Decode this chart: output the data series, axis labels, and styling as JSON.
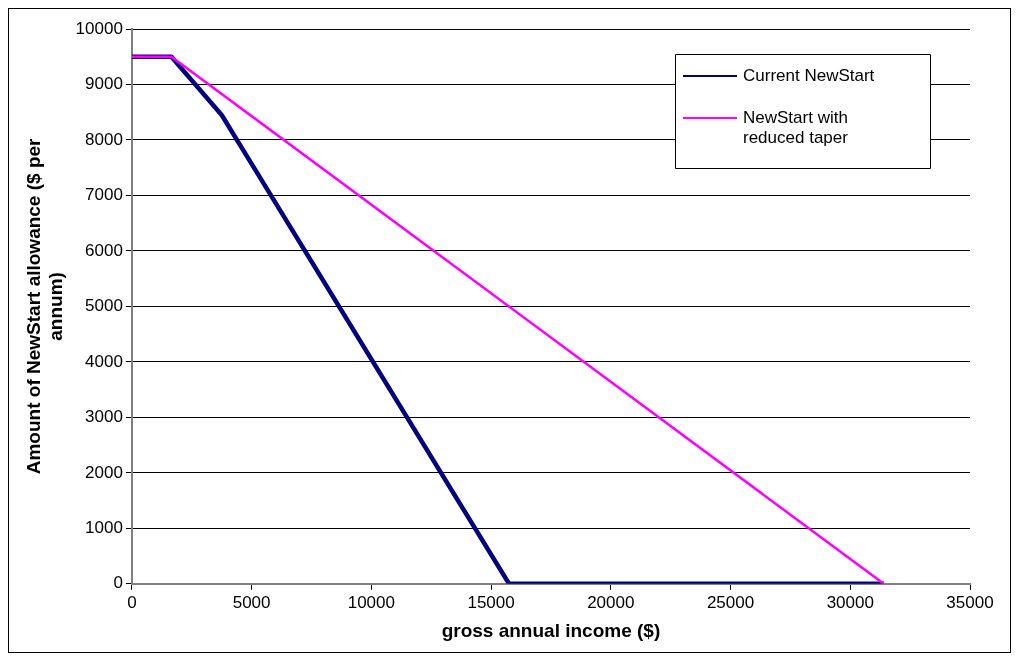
{
  "chart_data": {
    "type": "line",
    "xlabel": "gross annual income ($)",
    "ylabel": "Amount of NewStart allowance ($ per annum)",
    "xlim": [
      0,
      35000
    ],
    "xticks": [
      0,
      5000,
      10000,
      15000,
      20000,
      25000,
      30000,
      35000
    ],
    "ylim": [
      0,
      10000
    ],
    "yticks": [
      0,
      1000,
      2000,
      3000,
      4000,
      5000,
      6000,
      7000,
      8000,
      9000,
      10000
    ],
    "grid": "y",
    "legend": "top right",
    "marker": "none",
    "line_style": "solid",
    "series": [
      {
        "name": "Current NewStart",
        "color": "#000080",
        "x": [
          0,
          1650,
          3750,
          15750,
          31400
        ],
        "values": [
          9500,
          9500,
          8450,
          0,
          0
        ]
      },
      {
        "name": "NewStart with reduced taper",
        "color": "#ff00ff",
        "x": [
          0,
          1650,
          31400
        ],
        "values": [
          9500,
          9500,
          0
        ]
      }
    ]
  }
}
